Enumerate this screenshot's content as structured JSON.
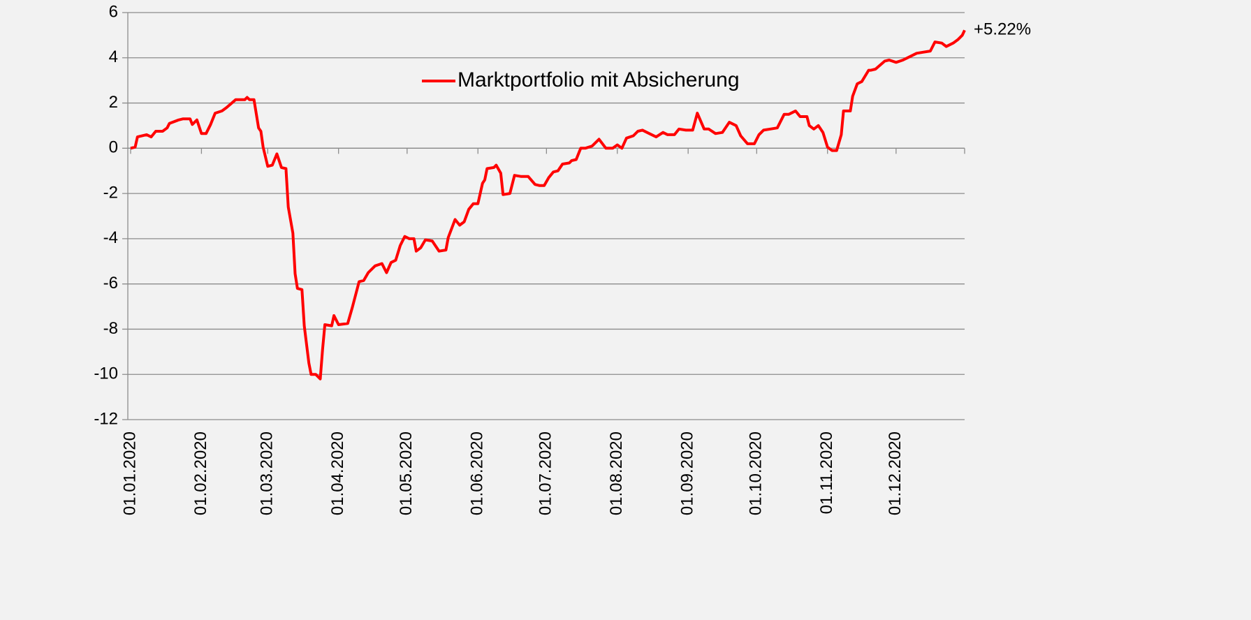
{
  "chart_data": {
    "type": "line",
    "annotation": "+5.22%",
    "legend": "top",
    "grid": true,
    "xlim": [
      "2020-01-01",
      "2020-12-31"
    ],
    "xticks": [
      {
        "value": "2020-01-01",
        "label": "01.01.2020"
      },
      {
        "value": "2020-02-01",
        "label": "01.02.2020"
      },
      {
        "value": "2020-03-01",
        "label": "01.03.2020"
      },
      {
        "value": "2020-04-01",
        "label": "01.04.2020"
      },
      {
        "value": "2020-05-01",
        "label": "01.05.2020"
      },
      {
        "value": "2020-06-01",
        "label": "01.06.2020"
      },
      {
        "value": "2020-07-01",
        "label": "01.07.2020"
      },
      {
        "value": "2020-08-01",
        "label": "01.08.2020"
      },
      {
        "value": "2020-09-01",
        "label": "01.09.2020"
      },
      {
        "value": "2020-10-01",
        "label": "01.10.2020"
      },
      {
        "value": "2020-11-01",
        "label": "01.11.2020"
      },
      {
        "value": "2020-12-01",
        "label": "01.12.2020"
      }
    ],
    "ylim": [
      -12,
      6
    ],
    "yticks": [
      -12,
      -10,
      -8,
      -6,
      -4,
      -2,
      0,
      2,
      4,
      6
    ],
    "x": [
      "2020-01-01",
      "2020-01-03",
      "2020-01-04",
      "2020-01-08",
      "2020-01-10",
      "2020-01-12",
      "2020-01-15",
      "2020-01-17",
      "2020-01-18",
      "2020-01-22",
      "2020-01-24",
      "2020-01-27",
      "2020-01-28",
      "2020-01-30",
      "2020-02-01",
      "2020-02-03",
      "2020-02-05",
      "2020-02-07",
      "2020-02-10",
      "2020-02-12",
      "2020-02-16",
      "2020-02-20",
      "2020-02-21",
      "2020-02-22",
      "2020-02-24",
      "2020-02-26",
      "2020-02-27",
      "2020-02-28",
      "2020-03-01",
      "2020-03-03",
      "2020-03-05",
      "2020-03-07",
      "2020-03-09",
      "2020-03-10",
      "2020-03-12",
      "2020-03-13",
      "2020-03-14",
      "2020-03-16",
      "2020-03-17",
      "2020-03-19",
      "2020-03-20",
      "2020-03-22",
      "2020-03-24",
      "2020-03-25",
      "2020-03-26",
      "2020-03-29",
      "2020-03-30",
      "2020-04-01",
      "2020-04-05",
      "2020-04-07",
      "2020-04-10",
      "2020-04-12",
      "2020-04-14",
      "2020-04-17",
      "2020-04-20",
      "2020-04-22",
      "2020-04-24",
      "2020-04-26",
      "2020-04-28",
      "2020-04-30",
      "2020-05-02",
      "2020-05-04",
      "2020-05-05",
      "2020-05-07",
      "2020-05-09",
      "2020-05-12",
      "2020-05-15",
      "2020-05-18",
      "2020-05-19",
      "2020-05-22",
      "2020-05-24",
      "2020-05-26",
      "2020-05-28",
      "2020-05-30",
      "2020-06-01",
      "2020-06-03",
      "2020-06-04",
      "2020-06-05",
      "2020-06-08",
      "2020-06-09",
      "2020-06-11",
      "2020-06-12",
      "2020-06-15",
      "2020-06-17",
      "2020-06-20",
      "2020-06-23",
      "2020-06-26",
      "2020-06-28",
      "2020-06-30",
      "2020-07-02",
      "2020-07-04",
      "2020-07-06",
      "2020-07-08",
      "2020-07-11",
      "2020-07-12",
      "2020-07-14",
      "2020-07-16",
      "2020-07-18",
      "2020-07-21",
      "2020-07-24",
      "2020-07-27",
      "2020-07-30",
      "2020-08-01",
      "2020-08-03",
      "2020-08-05",
      "2020-08-08",
      "2020-08-10",
      "2020-08-12",
      "2020-08-15",
      "2020-08-18",
      "2020-08-21",
      "2020-08-23",
      "2020-08-26",
      "2020-08-28",
      "2020-08-31",
      "2020-09-03",
      "2020-09-05",
      "2020-09-08",
      "2020-09-10",
      "2020-09-13",
      "2020-09-16",
      "2020-09-19",
      "2020-09-22",
      "2020-09-24",
      "2020-09-27",
      "2020-09-30",
      "2020-10-02",
      "2020-10-04",
      "2020-10-07",
      "2020-10-10",
      "2020-10-13",
      "2020-10-15",
      "2020-10-18",
      "2020-10-20",
      "2020-10-23",
      "2020-10-24",
      "2020-10-26",
      "2020-10-28",
      "2020-10-30",
      "2020-11-01",
      "2020-11-03",
      "2020-11-05",
      "2020-11-07",
      "2020-11-08",
      "2020-11-11",
      "2020-11-12",
      "2020-11-14",
      "2020-11-16",
      "2020-11-19",
      "2020-11-20",
      "2020-11-22",
      "2020-11-26",
      "2020-11-28",
      "2020-12-01",
      "2020-12-04",
      "2020-12-07",
      "2020-12-10",
      "2020-12-13",
      "2020-12-16",
      "2020-12-18",
      "2020-12-21",
      "2020-12-23",
      "2020-12-26",
      "2020-12-28",
      "2020-12-30",
      "2020-12-31"
    ],
    "series": [
      {
        "name": "Marktportfolio mit Absicherung",
        "color": "#ff0000",
        "values": [
          0,
          0.05,
          0.5,
          0.6,
          0.5,
          0.75,
          0.75,
          0.9,
          1.1,
          1.25,
          1.3,
          1.3,
          1.05,
          1.25,
          0.65,
          0.65,
          1.05,
          1.55,
          1.65,
          1.8,
          2.15,
          2.15,
          2.25,
          2.15,
          2.15,
          0.9,
          0.75,
          0.05,
          -0.8,
          -0.75,
          -0.25,
          -0.85,
          -0.9,
          -2.6,
          -3.75,
          -5.55,
          -6.2,
          -6.25,
          -7.85,
          -9.5,
          -10.0,
          -10.0,
          -10.2,
          -8.9,
          -7.8,
          -7.85,
          -7.4,
          -7.8,
          -7.75,
          -7.05,
          -5.9,
          -5.85,
          -5.5,
          -5.2,
          -5.1,
          -5.5,
          -5.05,
          -4.95,
          -4.3,
          -3.9,
          -4.0,
          -4.0,
          -4.55,
          -4.4,
          -4.05,
          -4.1,
          -4.55,
          -4.5,
          -3.95,
          -3.15,
          -3.4,
          -3.25,
          -2.7,
          -2.45,
          -2.45,
          -1.55,
          -1.4,
          -0.9,
          -0.85,
          -0.75,
          -1.1,
          -2.05,
          -2.0,
          -1.2,
          -1.25,
          -1.25,
          -1.6,
          -1.65,
          -1.65,
          -1.3,
          -1.05,
          -1.0,
          -0.7,
          -0.65,
          -0.55,
          -0.5,
          0.0,
          0.0,
          0.1,
          0.4,
          0.0,
          0.0,
          0.15,
          0.0,
          0.45,
          0.55,
          0.75,
          0.8,
          0.65,
          0.5,
          0.7,
          0.6,
          0.6,
          0.85,
          0.8,
          0.8,
          1.55,
          0.85,
          0.85,
          0.65,
          0.7,
          1.15,
          1.0,
          0.55,
          0.2,
          0.2,
          0.6,
          0.8,
          0.85,
          0.9,
          1.5,
          1.5,
          1.65,
          1.4,
          1.4,
          1.0,
          0.85,
          1.0,
          0.7,
          0.05,
          -0.1,
          -0.1,
          0.6,
          1.65,
          1.65,
          2.3,
          2.85,
          2.95,
          3.45,
          3.45,
          3.5,
          3.85,
          3.9,
          3.8,
          3.9,
          4.05,
          4.2,
          4.25,
          4.3,
          4.7,
          4.65,
          4.5,
          4.65,
          4.8,
          5.0,
          5.22
        ]
      }
    ]
  }
}
